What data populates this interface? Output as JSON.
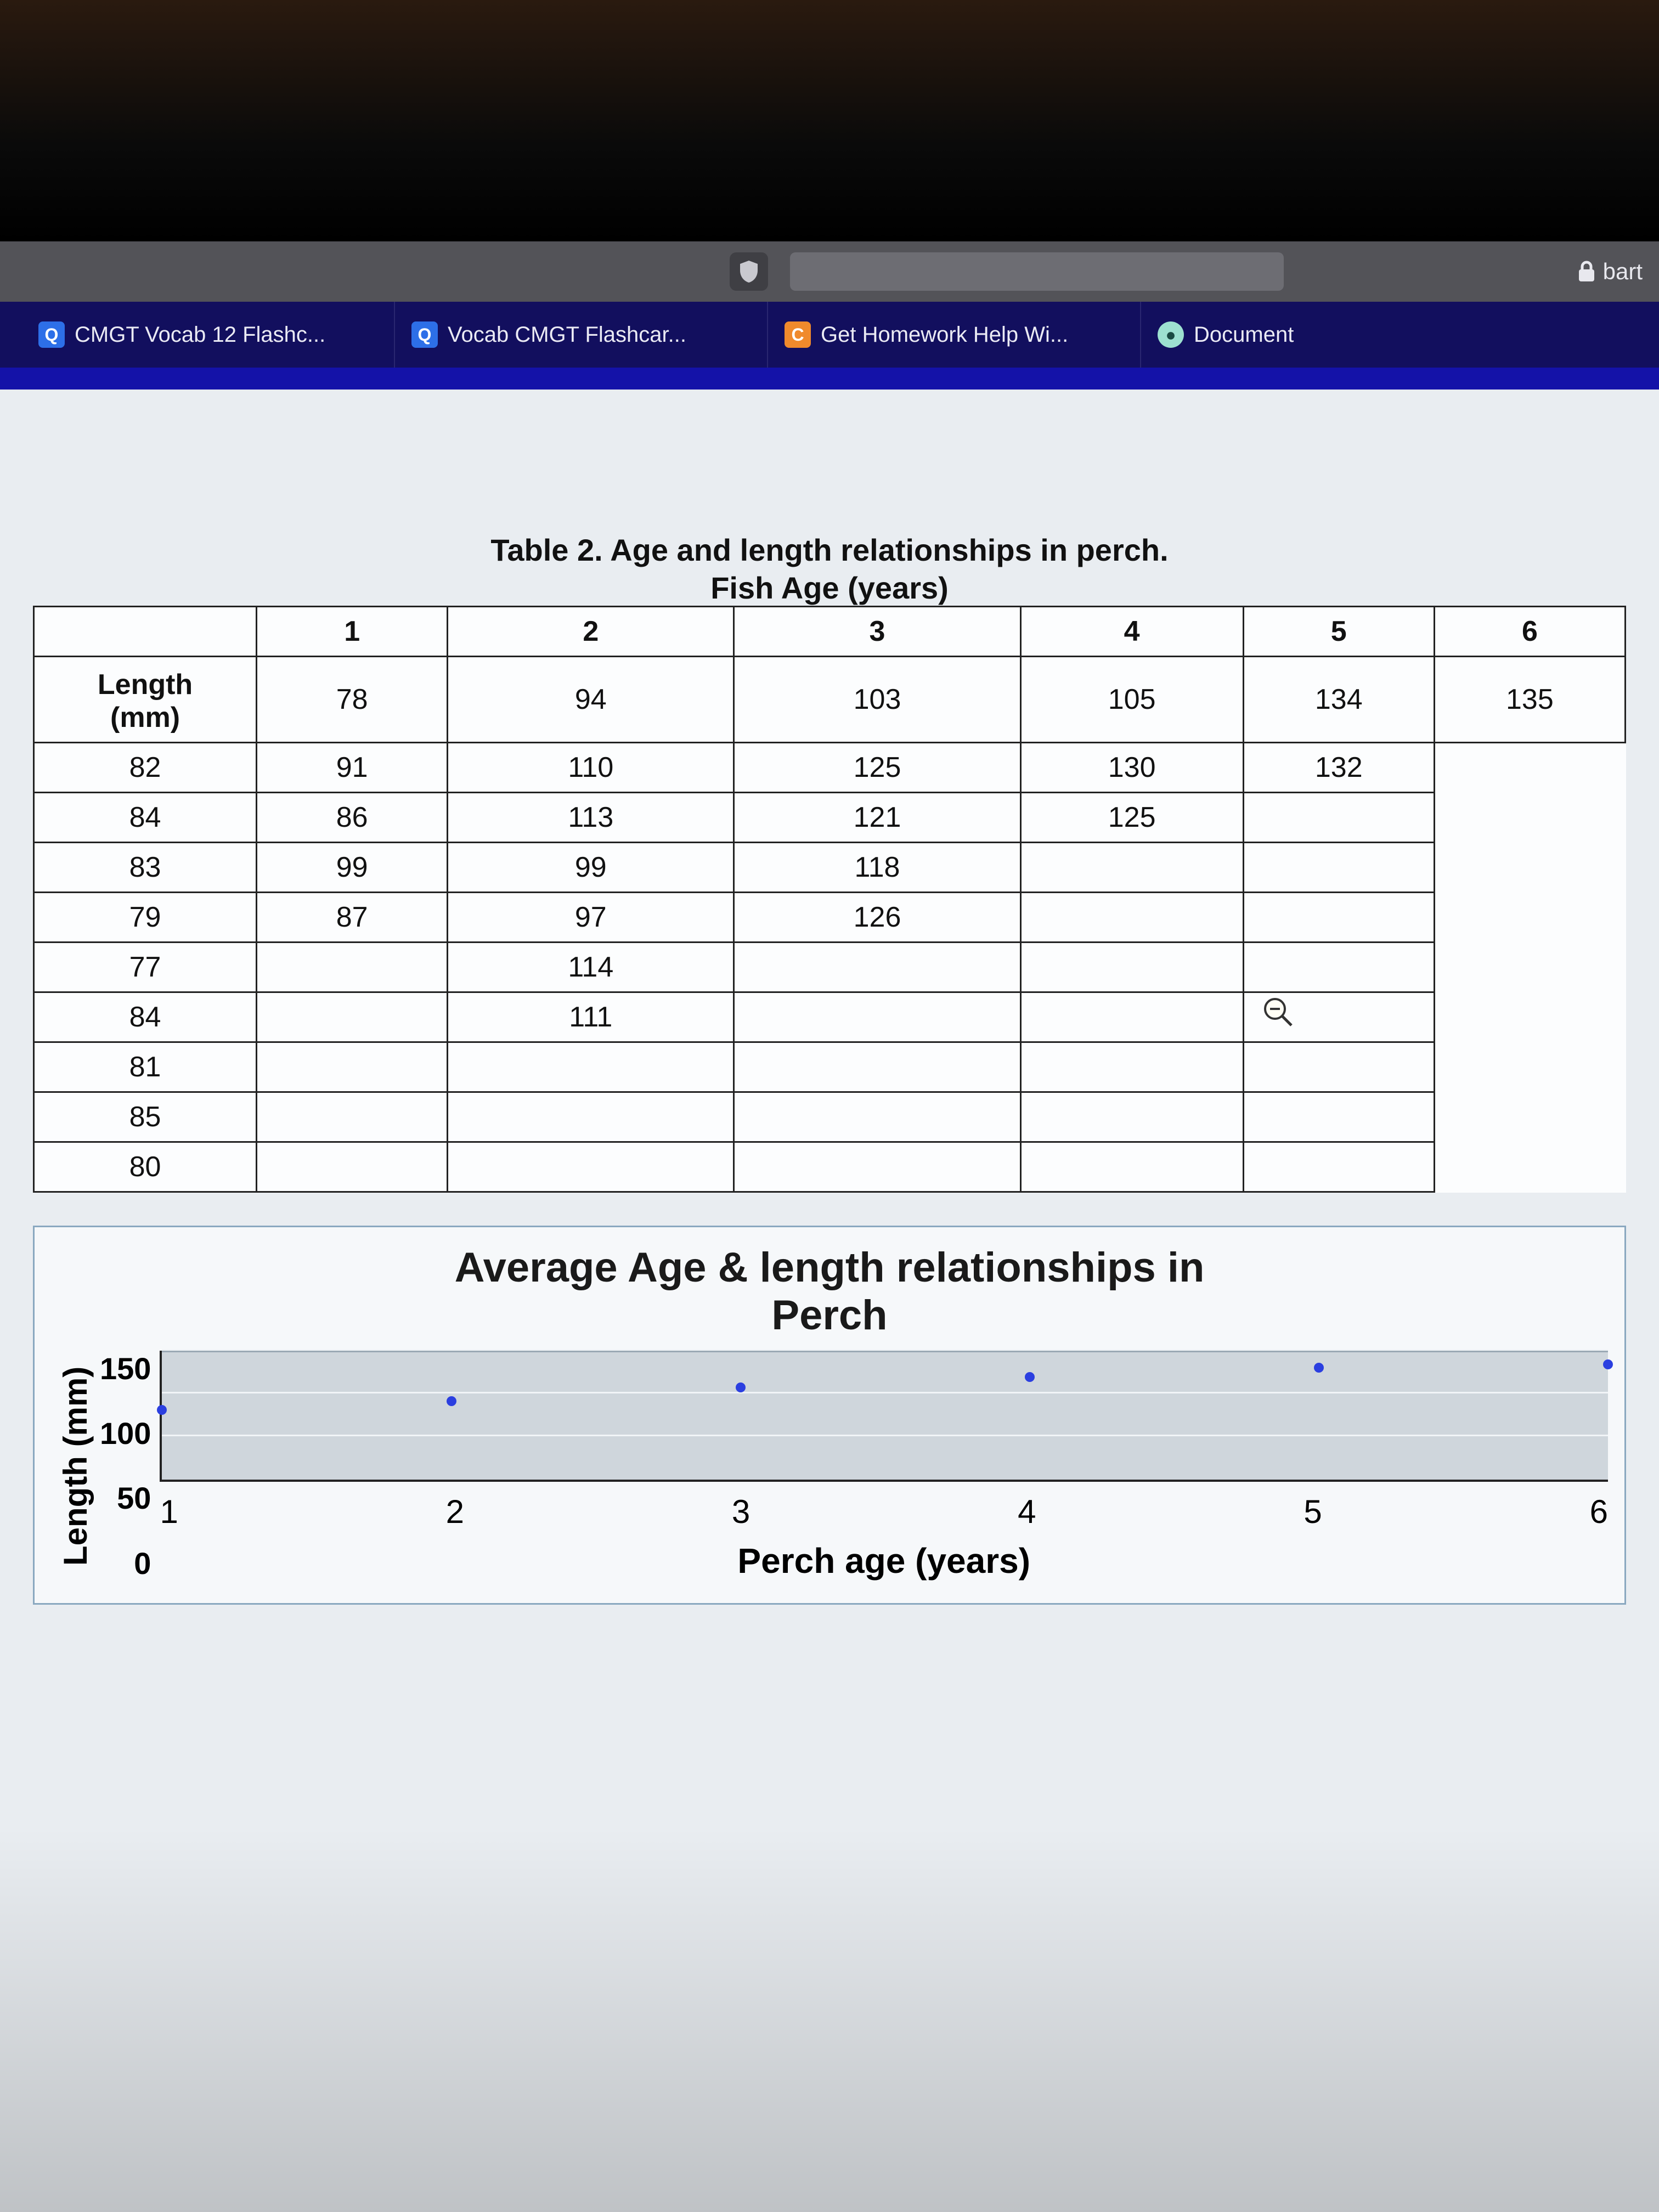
{
  "browser": {
    "lock_label": "bart",
    "tabs": [
      {
        "favicon": "Q",
        "favclass": "fav-q",
        "label": "CMGT Vocab 12 Flashc..."
      },
      {
        "favicon": "Q",
        "favclass": "fav-q",
        "label": "Vocab CMGT Flashcar..."
      },
      {
        "favicon": "C",
        "favclass": "fav-c",
        "label": "Get Homework Help Wi..."
      },
      {
        "favicon": "●",
        "favclass": "fav-d",
        "label": "Document"
      }
    ]
  },
  "table": {
    "caption": "Table 2. Age and length relationships in perch.",
    "subcaption": "Fish Age (years)",
    "row_label_line1": "Length",
    "row_label_line2": "(mm)",
    "age_headers": [
      "1",
      "2",
      "3",
      "4",
      "5",
      "6"
    ],
    "columns": [
      [
        "78",
        "82",
        "84",
        "83",
        "79",
        "77",
        "84",
        "81",
        "85",
        "80"
      ],
      [
        "94",
        "91",
        "86",
        "99",
        "87",
        "",
        "",
        "",
        "",
        ""
      ],
      [
        "103",
        "110",
        "113",
        "99",
        "97",
        "114",
        "111",
        "",
        "",
        ""
      ],
      [
        "105",
        "125",
        "121",
        "118",
        "126",
        "",
        "",
        "",
        "",
        ""
      ],
      [
        "134",
        "130",
        "125",
        "",
        "",
        "",
        "",
        "",
        "",
        ""
      ],
      [
        "135",
        "132",
        "",
        "",
        "",
        "",
        "",
        "",
        "",
        ""
      ]
    ],
    "col_widths_pct": [
      14,
      12,
      18,
      18,
      14,
      12,
      12
    ]
  },
  "chart": {
    "title_line1": "Average Age & length relationships in",
    "title_line2": "Perch",
    "ylabel": "Length (mm)",
    "xlabel": "Perch age (years)",
    "ylim": [
      0,
      150
    ],
    "yticks": [
      "150",
      "100",
      "50",
      "0"
    ],
    "xticks": [
      "1",
      "2",
      "3",
      "4",
      "5",
      "6"
    ],
    "grid_y": [
      50,
      100,
      150
    ],
    "point_color": "#2b3fe0",
    "plot_bg": "#cfd6dc",
    "grid_color": "#f1f4f7",
    "points": [
      {
        "x": 1,
        "y": 81
      },
      {
        "x": 2,
        "y": 91
      },
      {
        "x": 3,
        "y": 107
      },
      {
        "x": 4,
        "y": 119
      },
      {
        "x": 5,
        "y": 130
      },
      {
        "x": 6,
        "y": 134
      }
    ]
  }
}
